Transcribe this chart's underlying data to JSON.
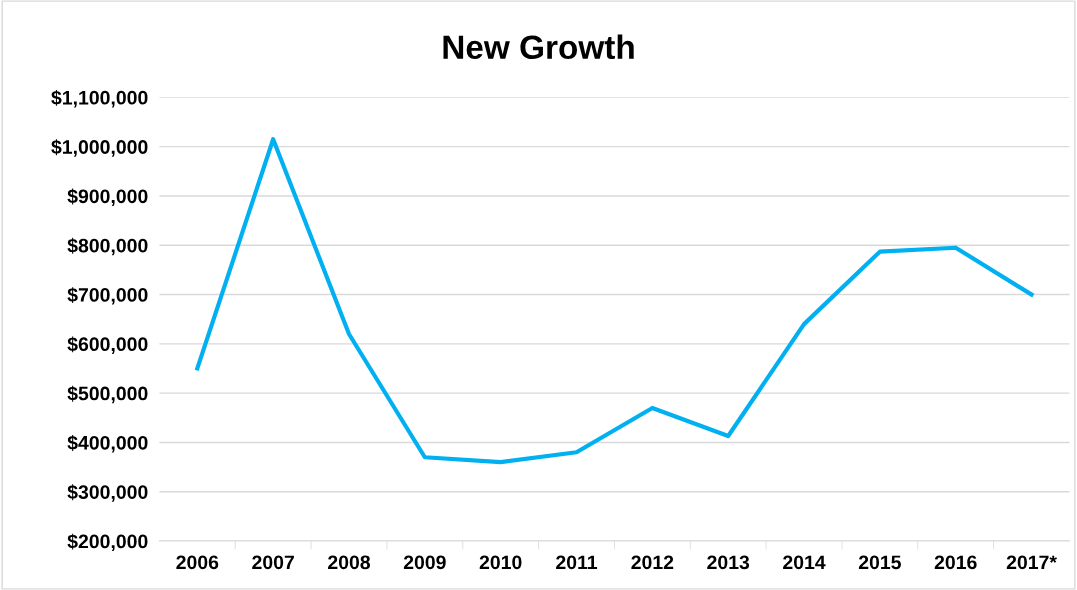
{
  "chart_data": {
    "type": "line",
    "title": "New Growth",
    "categories": [
      "2006",
      "2007",
      "2008",
      "2009",
      "2010",
      "2011",
      "2012",
      "2013",
      "2014",
      "2015",
      "2016",
      "2017*"
    ],
    "series": [
      {
        "color": "#00b0f0",
        "values": [
          550000,
          1015000,
          620000,
          370000,
          360000,
          380000,
          470000,
          413000,
          640000,
          787000,
          795000,
          700000
        ]
      }
    ],
    "ylim": [
      200000,
      1100000
    ],
    "yticks": [
      {
        "value": 200000,
        "label": "$200,000"
      },
      {
        "value": 300000,
        "label": "$300,000"
      },
      {
        "value": 400000,
        "label": "$400,000"
      },
      {
        "value": 500000,
        "label": "$500,000"
      },
      {
        "value": 600000,
        "label": "$600,000"
      },
      {
        "value": 700000,
        "label": "$700,000"
      },
      {
        "value": 800000,
        "label": "$800,000"
      },
      {
        "value": 900000,
        "label": "$900,000"
      },
      {
        "value": 1000000,
        "label": "$1,000,000"
      },
      {
        "value": 1100000,
        "label": "$1,100,000"
      }
    ],
    "grid": "y",
    "marker": "none",
    "line_style": "solid"
  }
}
